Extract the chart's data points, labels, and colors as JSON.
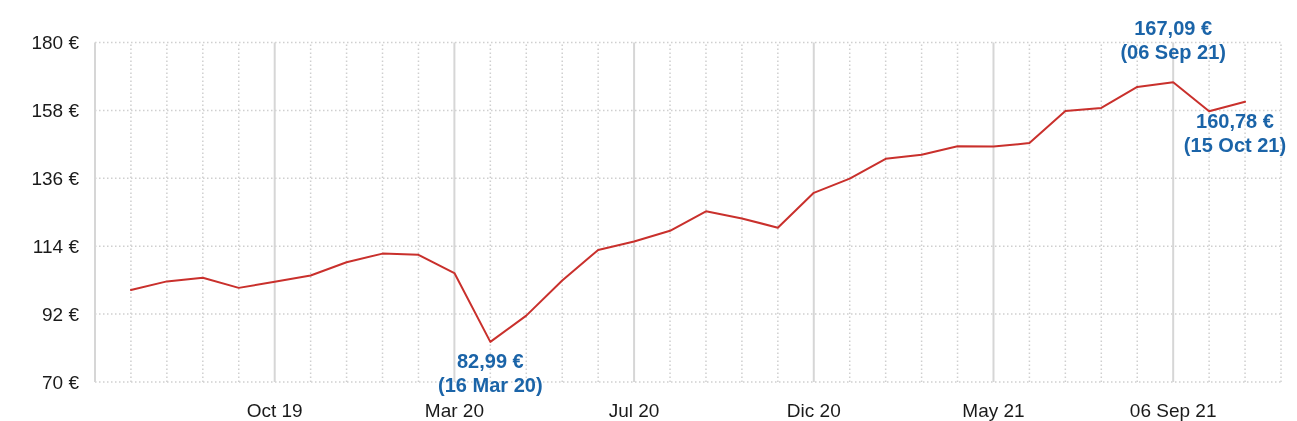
{
  "chart_data": {
    "type": "line",
    "categories": [
      null,
      null,
      null,
      null,
      "Oct 19",
      null,
      null,
      null,
      null,
      "Mar 20",
      null,
      null,
      null,
      null,
      "Jul 20",
      null,
      null,
      null,
      null,
      "Dic 20",
      null,
      null,
      null,
      null,
      "May 21",
      null,
      null,
      null,
      null,
      "06 Sep 21",
      null,
      null
    ],
    "series": [
      {
        "color": "#c9302c",
        "values": [
          99.8,
          102.6,
          103.8,
          100.5,
          102.5,
          104.5,
          108.8,
          111.6,
          111.2,
          105.3,
          82.99,
          91.5,
          102.9,
          112.8,
          115.5,
          119.0,
          125.3,
          123.0,
          120.0,
          131.3,
          135.9,
          142.3,
          143.6,
          146.4,
          146.3,
          147.4,
          157.8,
          158.8,
          165.6,
          167.09,
          157.7,
          160.78
        ]
      }
    ],
    "ylim": [
      70,
      180
    ],
    "yticks": [
      {
        "value": 70,
        "label": "70 €"
      },
      {
        "value": 92,
        "label": "92 €"
      },
      {
        "value": 114,
        "label": "114 €"
      },
      {
        "value": 136,
        "label": "136 €"
      },
      {
        "value": 158,
        "label": "158 €"
      },
      {
        "value": 180,
        "label": "180 €"
      }
    ],
    "grid": true,
    "annotations": [
      {
        "text": "82,99 €\n(16 Mar 20)",
        "y": 82.99
      },
      {
        "text": "167,09 €\n(06 Sep 21)",
        "y": 167.09
      },
      {
        "text": "160,78 €\n(15 Oct 21)",
        "y": 160.78
      }
    ]
  }
}
